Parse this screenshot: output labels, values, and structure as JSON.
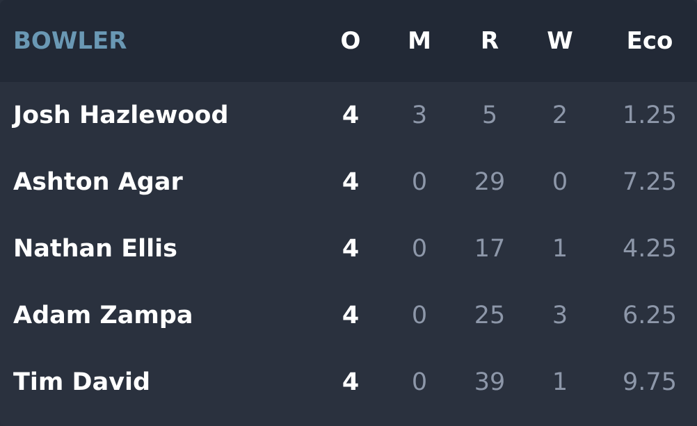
{
  "header": {
    "bowler": "BOWLER",
    "overs": "O",
    "maidens": "M",
    "runs": "R",
    "wickets": "W",
    "economy": "Eco"
  },
  "colors": {
    "header_bg": "#222936",
    "body_bg": "#2a313e",
    "bowler_header": "#6a98b4",
    "primary_text": "#ffffff",
    "muted_text": "#8d97a9"
  },
  "rows": [
    {
      "name": "Josh Hazlewood",
      "o": "4",
      "m": "3",
      "r": "5",
      "w": "2",
      "eco": "1.25"
    },
    {
      "name": "Ashton Agar",
      "o": "4",
      "m": "0",
      "r": "29",
      "w": "0",
      "eco": "7.25"
    },
    {
      "name": "Nathan Ellis",
      "o": "4",
      "m": "0",
      "r": "17",
      "w": "1",
      "eco": "4.25"
    },
    {
      "name": "Adam Zampa",
      "o": "4",
      "m": "0",
      "r": "25",
      "w": "3",
      "eco": "6.25"
    },
    {
      "name": "Tim David",
      "o": "4",
      "m": "0",
      "r": "39",
      "w": "1",
      "eco": "9.75"
    }
  ]
}
